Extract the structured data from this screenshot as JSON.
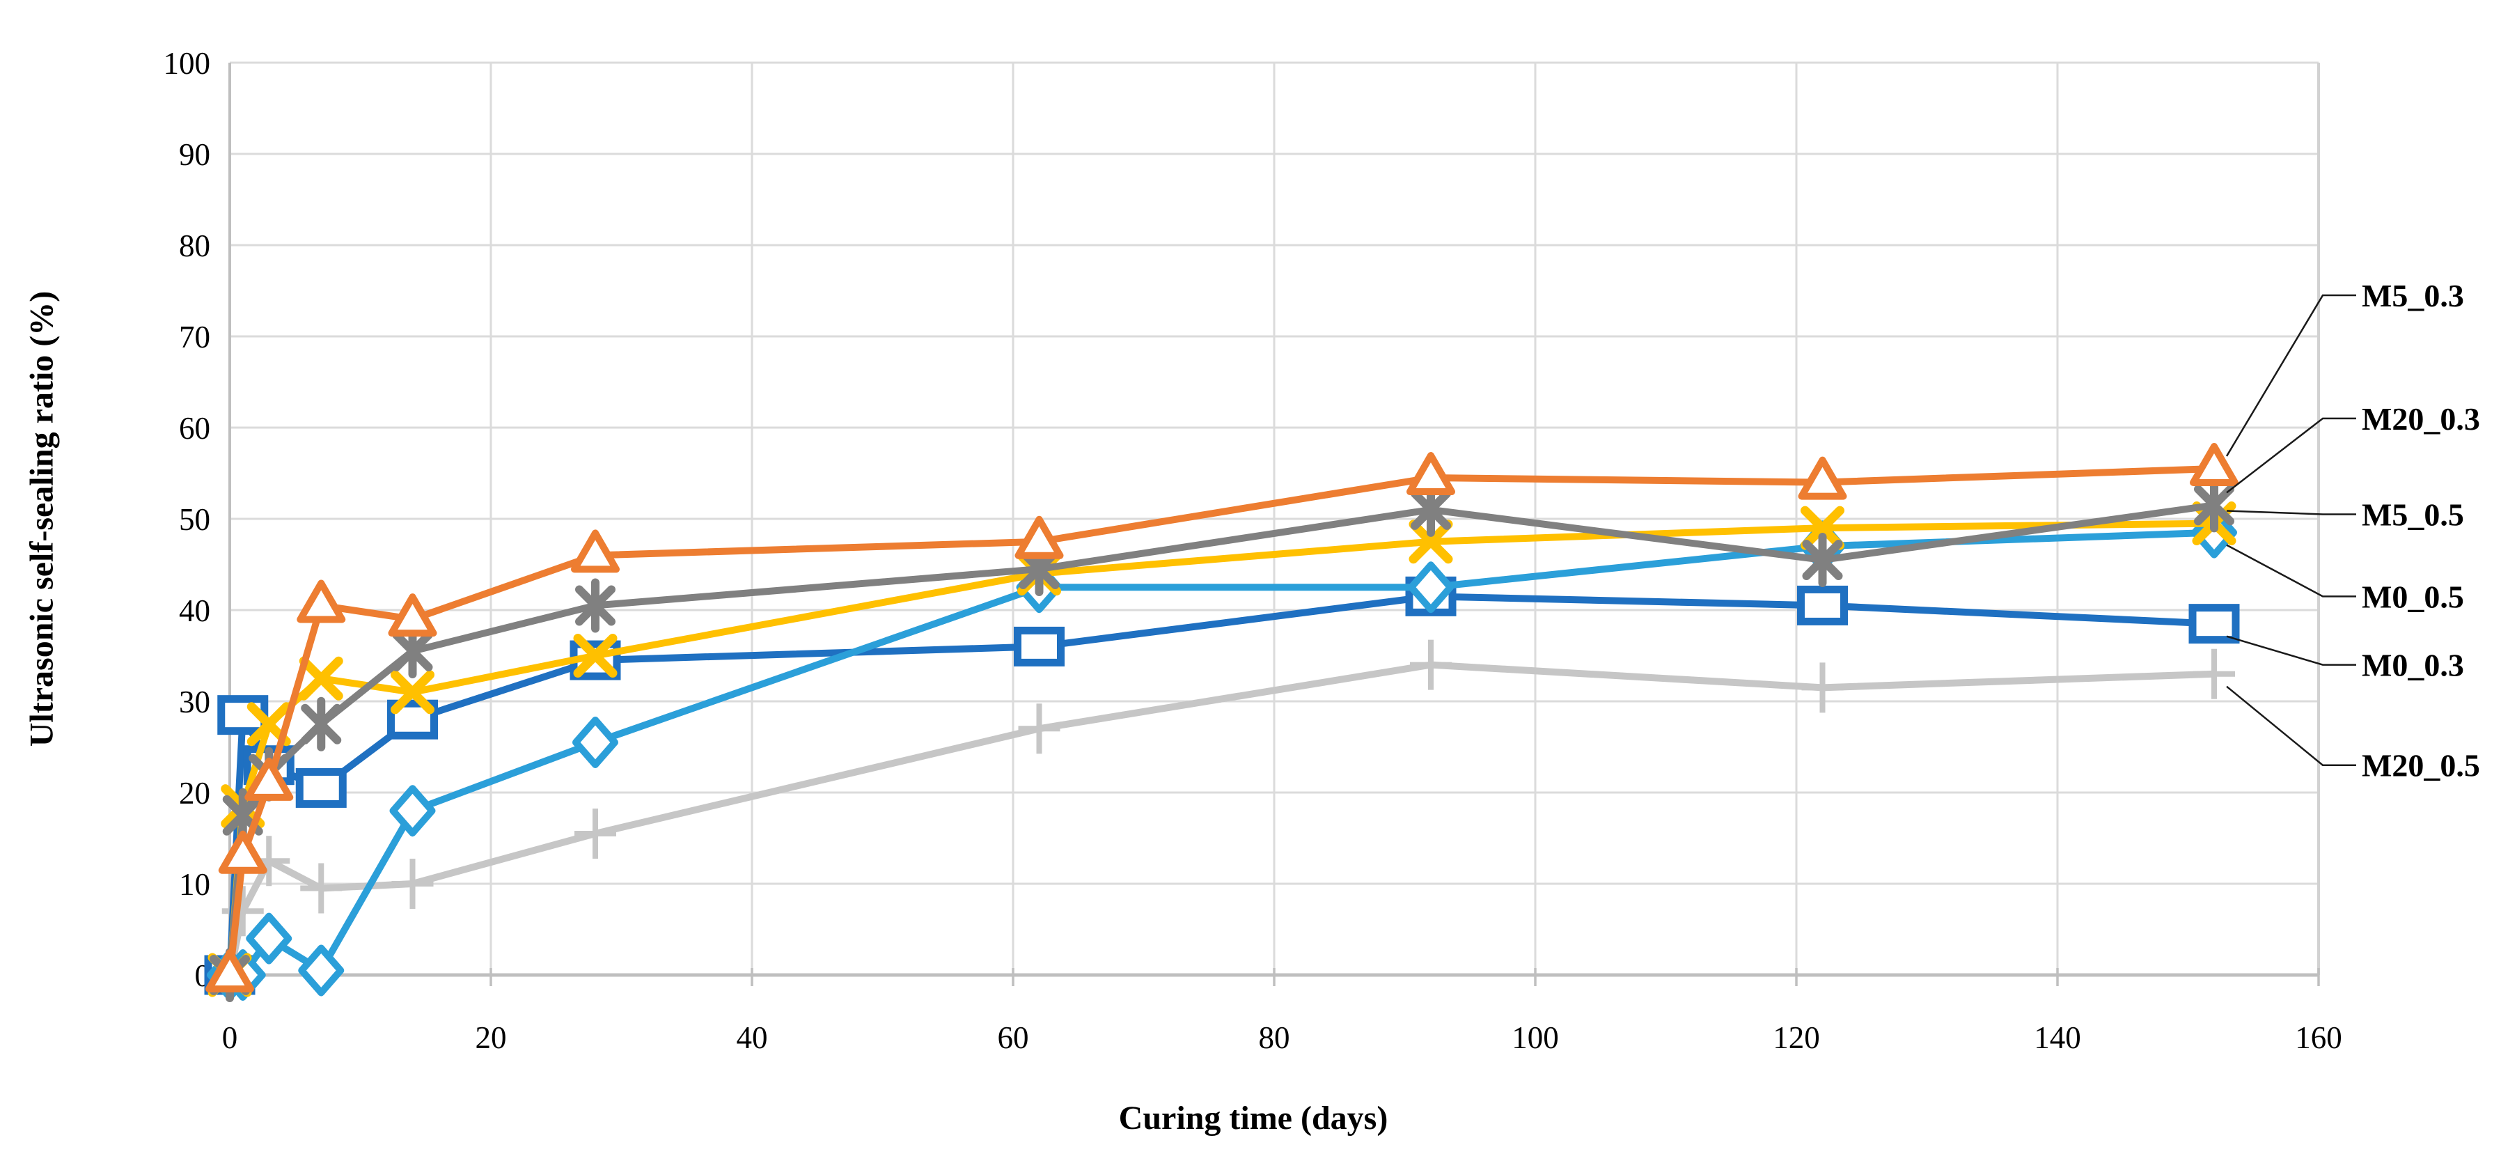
{
  "chart_data": {
    "type": "line",
    "title": "",
    "xlabel": "Curing time (days)",
    "ylabel": "Ultrasonic self-sealing ratio (%)",
    "xlim": [
      0,
      160
    ],
    "ylim": [
      0,
      100
    ],
    "x_ticks": [
      0,
      20,
      40,
      60,
      80,
      100,
      120,
      140,
      160
    ],
    "y_ticks": [
      0,
      10,
      20,
      30,
      40,
      50,
      60,
      70,
      80,
      90,
      100
    ],
    "grid": true,
    "legend_position": "right-callouts",
    "x": [
      0,
      1,
      3,
      7,
      14,
      28,
      62,
      92,
      122,
      152
    ],
    "series": [
      {
        "name": "M5_0.3",
        "color": "#ED7D31",
        "marker": "triangle",
        "values": [
          0,
          13,
          21,
          40.5,
          39,
          46,
          47.5,
          54.5,
          54,
          55.5
        ]
      },
      {
        "name": "M20_0.3",
        "color": "#808080",
        "marker": "star",
        "values": [
          0,
          17.5,
          22,
          27.5,
          35.5,
          40.5,
          44.5,
          51,
          45.5,
          51.5
        ]
      },
      {
        "name": "M5_0.5",
        "color": "#FFC000",
        "marker": "x",
        "values": [
          0,
          18.5,
          27.5,
          32.5,
          31,
          35,
          44,
          47.5,
          49,
          49.5
        ]
      },
      {
        "name": "M0_0.5",
        "color": "#2B9FD9",
        "marker": "diamond",
        "values": [
          0,
          0,
          4,
          0.5,
          18,
          25.5,
          42.5,
          42.5,
          47,
          48.5
        ]
      },
      {
        "name": "M0_0.3",
        "color": "#1F70C1",
        "marker": "square",
        "values": [
          0,
          28.5,
          23,
          20.5,
          28,
          34.5,
          36,
          41.5,
          40.5,
          38.5
        ]
      },
      {
        "name": "M20_0.5",
        "color": "#C6C6C6",
        "marker": "plus",
        "values": [
          0,
          7,
          12.5,
          9.5,
          10,
          15.5,
          27,
          34,
          31.5,
          33
        ]
      }
    ],
    "annotations": [
      {
        "label": "M5_0.3",
        "series": "M5_0.3",
        "label_at_value": 74.5
      },
      {
        "label": "M20_0.3",
        "series": "M20_0.3",
        "label_at_value": 61
      },
      {
        "label": "M5_0.5",
        "series": "M5_0.5",
        "label_at_value": 50.5
      },
      {
        "label": "M0_0.5",
        "series": "M0_0.5",
        "label_at_value": 41.5
      },
      {
        "label": "M0_0.3",
        "series": "M0_0.3",
        "label_at_value": 34
      },
      {
        "label": "M20_0.5",
        "series": "M20_0.5",
        "label_at_value": 23
      }
    ]
  },
  "colors": {
    "background": "#ffffff",
    "gridline": "#DBDBDB",
    "axis_line": "#BFBFBF",
    "tick_text": "#000000",
    "callout_line": "#1a1a1a"
  }
}
